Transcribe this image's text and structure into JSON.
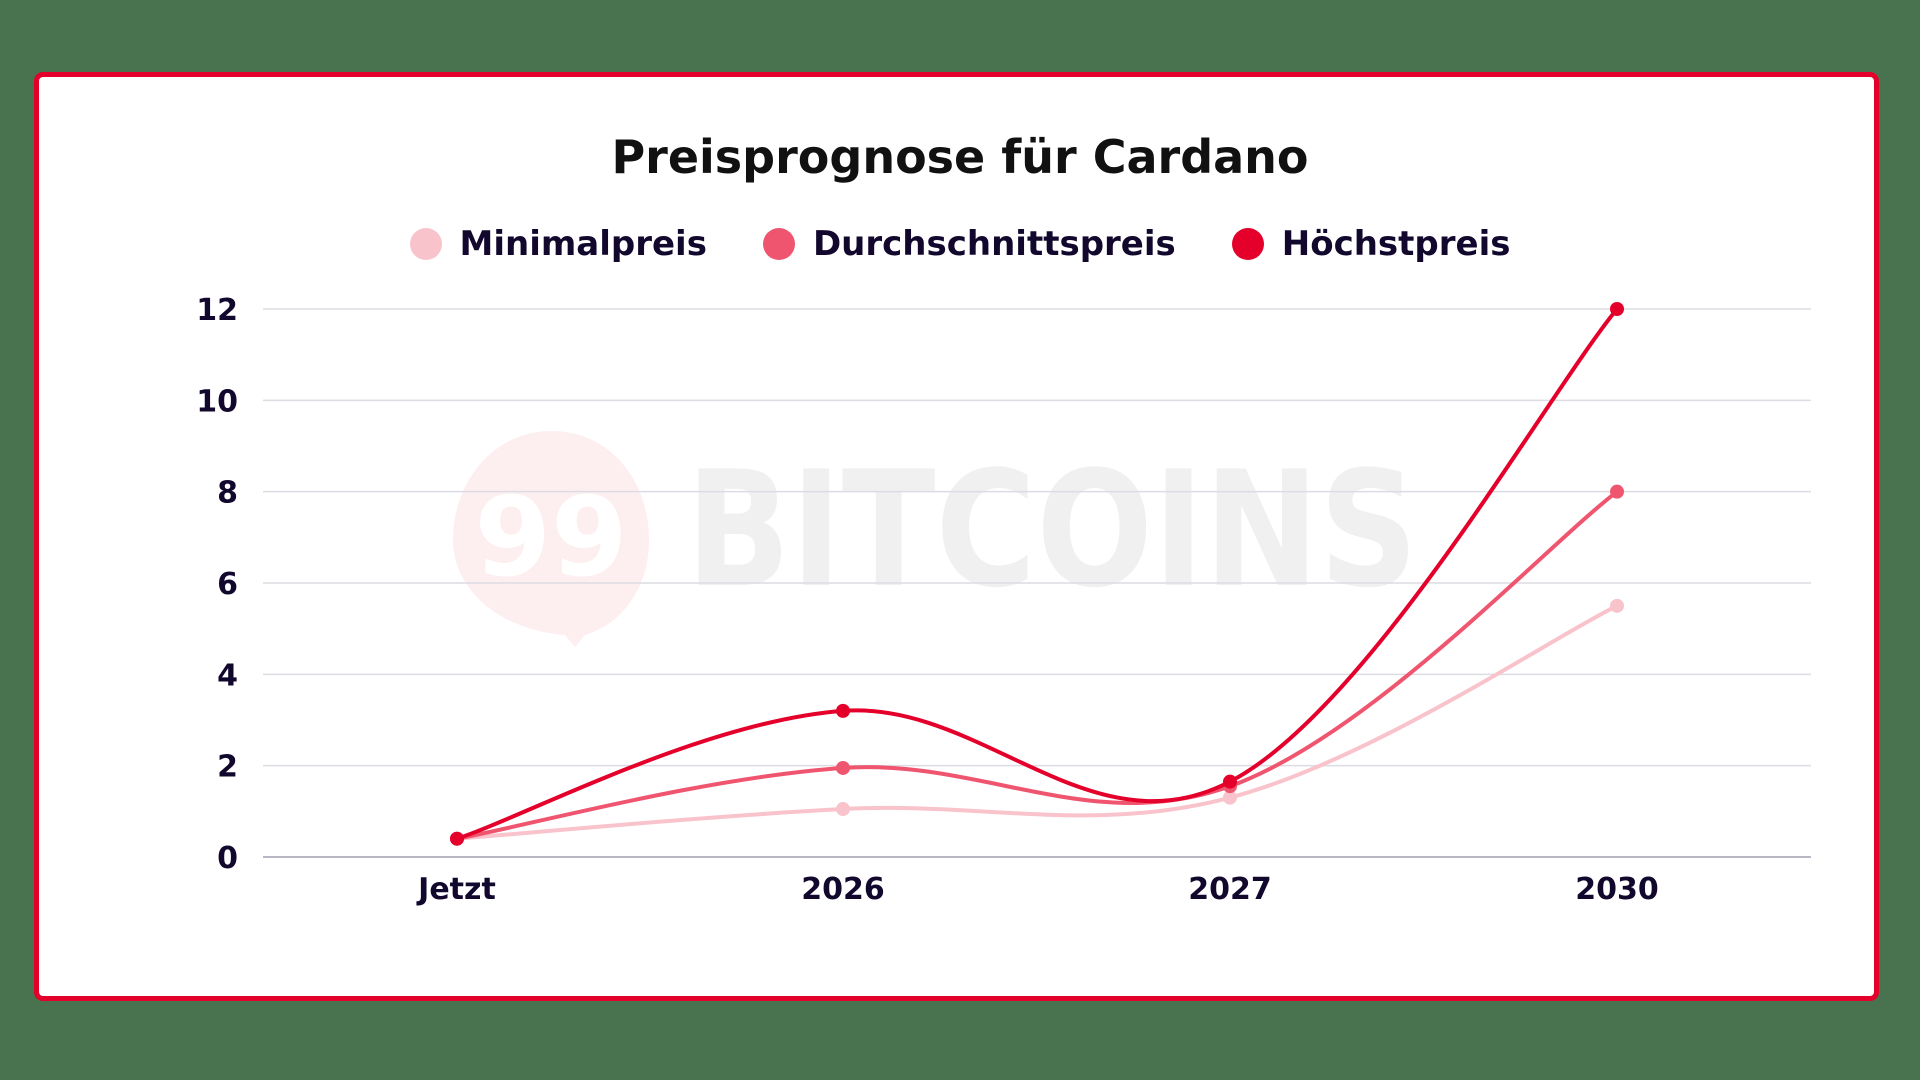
{
  "chart_data": {
    "type": "line",
    "title": "Preisprognose für Cardano",
    "categories": [
      "Jetzt",
      "2026",
      "2027",
      "2030"
    ],
    "series": [
      {
        "name": "Minimalpreis",
        "color": "#f9c3cc",
        "values": [
          0.4,
          1.05,
          1.3,
          5.5
        ]
      },
      {
        "name": "Durchschnittspreis",
        "color": "#f0556f",
        "values": [
          0.4,
          1.95,
          1.55,
          8
        ]
      },
      {
        "name": "Höchstpreis",
        "color": "#e4002b",
        "values": [
          0.4,
          3.2,
          1.65,
          12
        ]
      }
    ],
    "xlabel": "",
    "ylabel": "",
    "ylim": [
      0,
      12
    ],
    "yticks": [
      0,
      2,
      4,
      6,
      8,
      10,
      12
    ],
    "grid": true,
    "legend_position": "top",
    "smooth": true
  },
  "watermark": {
    "badge": "99",
    "text": "BITCOINS"
  },
  "colors": {
    "background": "#49724e",
    "card_border": "#e4002b",
    "text": "#12082e",
    "grid": "#dcdce2",
    "axis": "#b8b8c4"
  }
}
